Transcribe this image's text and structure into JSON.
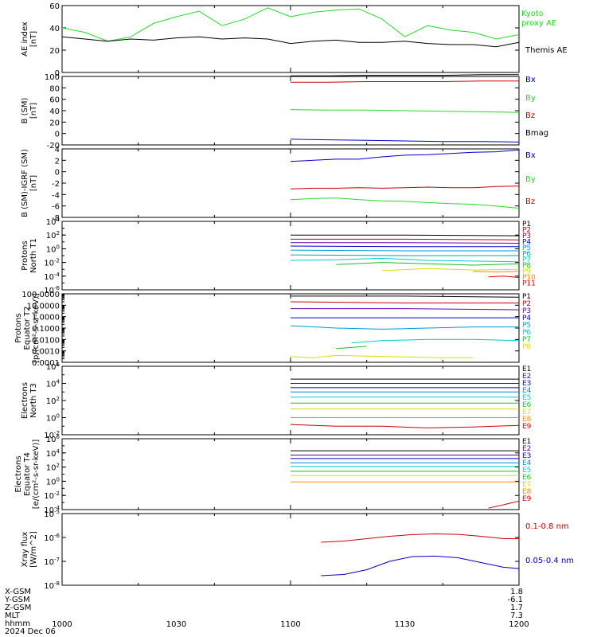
{
  "page": {
    "footer": {
      "rows": [
        {
          "label": "X-GSM",
          "value": "1.8"
        },
        {
          "label": "Y-GSM",
          "value": "-6.1"
        },
        {
          "label": "Z-GSM",
          "value": "1.7"
        },
        {
          "label": "MLT",
          "value": "7.3"
        },
        {
          "label": "hhmm",
          "value": ""
        },
        {
          "label": "2024 Dec 06",
          "value": ""
        }
      ],
      "time_ticks": [
        "1000",
        "1030",
        "1100",
        "1130",
        "1200"
      ]
    },
    "colors": {
      "black": "#000000",
      "green": "#22dd22",
      "red": "#cc0000",
      "blue": "#0000cc"
    }
  },
  "chart_data": [
    {
      "type": "line",
      "ylabel": [
        "AE index",
        "[nT]"
      ],
      "ylim": [
        0,
        60
      ],
      "yticks": [
        "0",
        "20",
        "40",
        "60"
      ],
      "series": [
        {
          "name": "Kyoto proxy AE",
          "color": "#22dd22",
          "x": [
            0,
            3,
            6,
            9,
            12,
            15,
            18,
            21,
            24,
            27,
            30,
            33,
            36,
            39,
            42,
            45,
            48,
            51,
            54,
            57,
            60
          ],
          "values": [
            40,
            36,
            28,
            32,
            44,
            50,
            55,
            42,
            48,
            58,
            50,
            54,
            56,
            57,
            48,
            32,
            42,
            38,
            36,
            30,
            34
          ]
        },
        {
          "name": "Themis AE",
          "color": "#000000",
          "x": [
            0,
            3,
            6,
            9,
            12,
            15,
            18,
            21,
            24,
            27,
            30,
            33,
            36,
            39,
            42,
            45,
            48,
            51,
            54,
            57,
            60
          ],
          "values": [
            32,
            30,
            28,
            30,
            29,
            31,
            32,
            30,
            31,
            30,
            26,
            28,
            29,
            27,
            27,
            28,
            26,
            25,
            25,
            23,
            27
          ]
        }
      ]
    },
    {
      "type": "line",
      "ylabel": [
        "B (SM)",
        "[nT]"
      ],
      "ylim": [
        -20,
        100
      ],
      "yticks": [
        "-20",
        "0",
        "20",
        "40",
        "60",
        "80",
        "100"
      ],
      "series": [
        {
          "name": "Bx",
          "color": "#0000cc",
          "x": [
            30,
            35,
            40,
            45,
            50,
            55,
            60
          ],
          "values": [
            -10,
            -11,
            -12,
            -13,
            -14,
            -14,
            -15
          ]
        },
        {
          "name": "By",
          "color": "#22dd22",
          "x": [
            30,
            35,
            40,
            45,
            50,
            55,
            60
          ],
          "values": [
            42,
            41,
            41,
            40,
            39,
            38,
            37
          ]
        },
        {
          "name": "Bz",
          "color": "#cc0000",
          "x": [
            30,
            35,
            40,
            45,
            50,
            55,
            60
          ],
          "values": [
            90,
            90,
            91,
            91,
            91,
            92,
            92
          ]
        },
        {
          "name": "Bmag",
          "color": "#000000",
          "x": [
            30,
            35,
            40,
            45,
            50,
            55,
            60
          ],
          "values": [
            101,
            101,
            102,
            102,
            102,
            103,
            103
          ]
        }
      ]
    },
    {
      "type": "line",
      "ylabel": [
        "B (SM)-IGRF (SM)",
        "[nT]"
      ],
      "ylim": [
        -8,
        4
      ],
      "yticks": [
        "-8",
        "-6",
        "-4",
        "-2",
        "0",
        "2",
        "4"
      ],
      "series": [
        {
          "name": "Bx",
          "color": "#0000cc",
          "x": [
            30,
            33,
            36,
            39,
            42,
            45,
            48,
            51,
            54,
            57,
            60
          ],
          "values": [
            1.8,
            2.0,
            2.2,
            2.2,
            2.6,
            2.9,
            3.0,
            3.2,
            3.4,
            3.5,
            3.8
          ]
        },
        {
          "name": "By",
          "color": "#22dd22",
          "x": [
            30,
            33,
            36,
            39,
            42,
            45,
            48,
            51,
            54,
            57,
            60
          ],
          "values": [
            -4.9,
            -4.7,
            -4.6,
            -4.9,
            -5.1,
            -5.2,
            -5.4,
            -5.6,
            -5.7,
            -6.0,
            -6.4
          ]
        },
        {
          "name": "Bz",
          "color": "#cc0000",
          "x": [
            30,
            33,
            36,
            39,
            42,
            45,
            48,
            51,
            54,
            57,
            60
          ],
          "values": [
            -3.0,
            -2.9,
            -2.9,
            -2.8,
            -2.9,
            -2.8,
            -2.7,
            -2.8,
            -2.8,
            -2.6,
            -2.5
          ]
        }
      ]
    },
    {
      "type": "line",
      "log": true,
      "ylabel": [
        "Protons",
        "North T1"
      ],
      "ylim_exp": [
        -6,
        4
      ],
      "yticks_exp": [
        -6,
        -4,
        -2,
        0,
        2,
        4
      ],
      "series": [
        {
          "name": "P1",
          "color": "#000000",
          "x": [
            30,
            45,
            60
          ],
          "exps": [
            2.0,
            2.0,
            1.9
          ]
        },
        {
          "name": "P2",
          "color": "#cc0000",
          "x": [
            30,
            45,
            60
          ],
          "exps": [
            1.4,
            1.4,
            1.3
          ]
        },
        {
          "name": "P3",
          "color": "#6600aa",
          "x": [
            30,
            45,
            60
          ],
          "exps": [
            0.9,
            0.9,
            0.8
          ]
        },
        {
          "name": "P4",
          "color": "#0000cc",
          "x": [
            30,
            45,
            60
          ],
          "exps": [
            0.4,
            0.3,
            0.3
          ]
        },
        {
          "name": "P5",
          "color": "#0099dd",
          "x": [
            30,
            45,
            60
          ],
          "exps": [
            -0.2,
            -0.3,
            -0.3
          ]
        },
        {
          "name": "P6",
          "color": "#00aa99",
          "x": [
            30,
            45,
            60
          ],
          "exps": [
            -0.9,
            -1.0,
            -1.0
          ]
        },
        {
          "name": "P7",
          "color": "#00cccc",
          "x": [
            30,
            36,
            42,
            48,
            54,
            60
          ],
          "exps": [
            -1.7,
            -1.6,
            -1.4,
            -1.7,
            -1.8,
            -1.9
          ]
        },
        {
          "name": "P8",
          "color": "#22bb22",
          "x": [
            36,
            42,
            48,
            54,
            60
          ],
          "exps": [
            -2.3,
            -2.0,
            -2.2,
            -2.4,
            -2.2
          ]
        },
        {
          "name": "P9",
          "color": "#dddd00",
          "x": [
            42,
            48,
            54,
            60
          ],
          "exps": [
            -3.2,
            -2.9,
            -3.1,
            -3.0
          ]
        },
        {
          "name": "P10",
          "color": "#ff8800",
          "x": [
            54,
            57,
            60
          ],
          "exps": [
            -3.3,
            -3.4,
            -3.3
          ]
        },
        {
          "name": "P11",
          "color": "#dd0000",
          "x": [
            56,
            58,
            60
          ],
          "exps": [
            -4.1,
            -4.0,
            -4.2
          ]
        }
      ]
    },
    {
      "type": "line",
      "log": true,
      "ylabel": [
        "Protons",
        "Equator T2",
        "[p/(cm²-s-sr-keV)]"
      ],
      "ylim_exp": [
        -4,
        2
      ],
      "yticks_text": [
        "0.0001",
        "0.0010",
        "0.0100",
        "0.1000",
        "1.0000",
        "10.0000",
        "100.0000"
      ],
      "series": [
        {
          "name": "P1",
          "color": "#000000",
          "x": [
            30,
            45,
            60
          ],
          "exps": [
            1.8,
            1.8,
            1.7
          ]
        },
        {
          "name": "P2",
          "color": "#cc0000",
          "x": [
            30,
            45,
            60
          ],
          "exps": [
            1.3,
            1.2,
            1.2
          ]
        },
        {
          "name": "P3",
          "color": "#6600aa",
          "x": [
            30,
            45,
            60
          ],
          "exps": [
            0.7,
            0.7,
            0.6
          ]
        },
        {
          "name": "P4",
          "color": "#0000cc",
          "x": [
            30,
            45,
            60
          ],
          "exps": [
            -0.1,
            -0.1,
            -0.1
          ]
        },
        {
          "name": "P5",
          "color": "#0099dd",
          "x": [
            30,
            36,
            42,
            48,
            54,
            60
          ],
          "exps": [
            -0.8,
            -1.0,
            -1.1,
            -1.0,
            -0.9,
            -0.9
          ]
        },
        {
          "name": "P6",
          "color": "#00cccc",
          "x": [
            38,
            42,
            48,
            54,
            60
          ],
          "exps": [
            -2.3,
            -2.1,
            -2.0,
            -2.0,
            -2.1
          ]
        },
        {
          "name": "P7",
          "color": "#22bb22",
          "x": [
            36,
            38,
            40
          ],
          "exps": [
            -2.8,
            -2.7,
            -2.6
          ]
        },
        {
          "name": "P8",
          "color": "#dddd00",
          "x": [
            30,
            33,
            36,
            50,
            54
          ],
          "exps": [
            -3.5,
            -3.6,
            -3.4,
            -3.6,
            -3.6
          ]
        }
      ]
    },
    {
      "type": "line",
      "log": true,
      "ylabel": [
        "Electrons",
        "North T3"
      ],
      "ylim_exp": [
        -2,
        6
      ],
      "yticks_exp": [
        -2,
        0,
        2,
        4,
        6
      ],
      "series": [
        {
          "name": "E1",
          "color": "#000000",
          "x": [
            30,
            45,
            60
          ],
          "exps": [
            4.5,
            4.5,
            4.5
          ]
        },
        {
          "name": "E2",
          "color": "#550088",
          "x": [
            30,
            45,
            60
          ],
          "exps": [
            4.0,
            4.0,
            4.0
          ]
        },
        {
          "name": "E3",
          "color": "#0000cc",
          "x": [
            30,
            45,
            60
          ],
          "exps": [
            3.5,
            3.5,
            3.5
          ]
        },
        {
          "name": "E4",
          "color": "#0088dd",
          "x": [
            30,
            45,
            60
          ],
          "exps": [
            3.0,
            3.0,
            3.0
          ]
        },
        {
          "name": "E5",
          "color": "#00cccc",
          "x": [
            30,
            45,
            60
          ],
          "exps": [
            2.4,
            2.4,
            2.4
          ]
        },
        {
          "name": "E6",
          "color": "#22bb22",
          "x": [
            30,
            45,
            60
          ],
          "exps": [
            1.7,
            1.7,
            1.7
          ]
        },
        {
          "name": "E7",
          "color": "#dddd00",
          "x": [
            30,
            45,
            60
          ],
          "exps": [
            1.0,
            1.0,
            1.0
          ]
        },
        {
          "name": "E8",
          "color": "#ff8800",
          "x": [
            30,
            45,
            60
          ],
          "exps": [
            0.0,
            0.0,
            0.0
          ]
        },
        {
          "name": "E9",
          "color": "#cc0000",
          "x": [
            30,
            36,
            42,
            48,
            54,
            60
          ],
          "exps": [
            -0.8,
            -1.0,
            -1.0,
            -1.2,
            -1.1,
            -0.9
          ]
        }
      ]
    },
    {
      "type": "line",
      "log": true,
      "ylabel": [
        "Electrons",
        "Equator T4",
        "[e/(cm²-s-sr-keV)]"
      ],
      "ylim_exp": [
        -4,
        6
      ],
      "yticks_exp": [
        -4,
        -2,
        0,
        2,
        4,
        6
      ],
      "series": [
        {
          "name": "E1",
          "color": "#000000",
          "x": [
            30,
            45,
            60
          ],
          "exps": [
            4.3,
            4.3,
            4.3
          ]
        },
        {
          "name": "E2",
          "color": "#550088",
          "x": [
            30,
            45,
            60
          ],
          "exps": [
            3.7,
            3.7,
            3.7
          ]
        },
        {
          "name": "E3",
          "color": "#0000cc",
          "x": [
            30,
            45,
            60
          ],
          "exps": [
            3.2,
            3.2,
            3.2
          ]
        },
        {
          "name": "E4",
          "color": "#0088dd",
          "x": [
            30,
            45,
            60
          ],
          "exps": [
            2.6,
            2.6,
            2.6
          ]
        },
        {
          "name": "E5",
          "color": "#00cccc",
          "x": [
            30,
            45,
            60
          ],
          "exps": [
            2.1,
            2.1,
            2.1
          ]
        },
        {
          "name": "E6",
          "color": "#22bb22",
          "x": [
            30,
            45,
            60
          ],
          "exps": [
            1.4,
            1.4,
            1.4
          ]
        },
        {
          "name": "E7",
          "color": "#dddd00",
          "x": [
            30,
            45,
            60
          ],
          "exps": [
            0.8,
            0.8,
            0.8
          ]
        },
        {
          "name": "E8",
          "color": "#ff8800",
          "x": [
            30,
            45,
            60
          ],
          "exps": [
            -0.1,
            -0.1,
            -0.1
          ]
        },
        {
          "name": "E9",
          "color": "#cc0000",
          "x": [
            56,
            58,
            60
          ],
          "exps": [
            -3.8,
            -3.3,
            -2.8
          ]
        }
      ]
    },
    {
      "type": "line",
      "log": true,
      "ylabel": [
        "Xray flux",
        "[W/m^2]"
      ],
      "ylim_exp": [
        -8,
        -5
      ],
      "yticks_exp": [
        -8,
        -7,
        -6,
        -5
      ],
      "series": [
        {
          "name": "0.1-0.8 nm",
          "color": "#cc0000",
          "x": [
            34,
            37,
            40,
            43,
            46,
            49,
            52,
            55,
            58,
            60
          ],
          "exps": [
            -6.2,
            -6.15,
            -6.05,
            -5.95,
            -5.88,
            -5.85,
            -5.87,
            -5.95,
            -6.05,
            -6.05
          ]
        },
        {
          "name": "0.05-0.4 nm",
          "color": "#0000cc",
          "x": [
            34,
            37,
            40,
            43,
            46,
            49,
            52,
            55,
            58,
            60
          ],
          "exps": [
            -7.6,
            -7.55,
            -7.35,
            -7.0,
            -6.8,
            -6.78,
            -6.85,
            -7.05,
            -7.25,
            -7.3
          ]
        }
      ]
    }
  ]
}
